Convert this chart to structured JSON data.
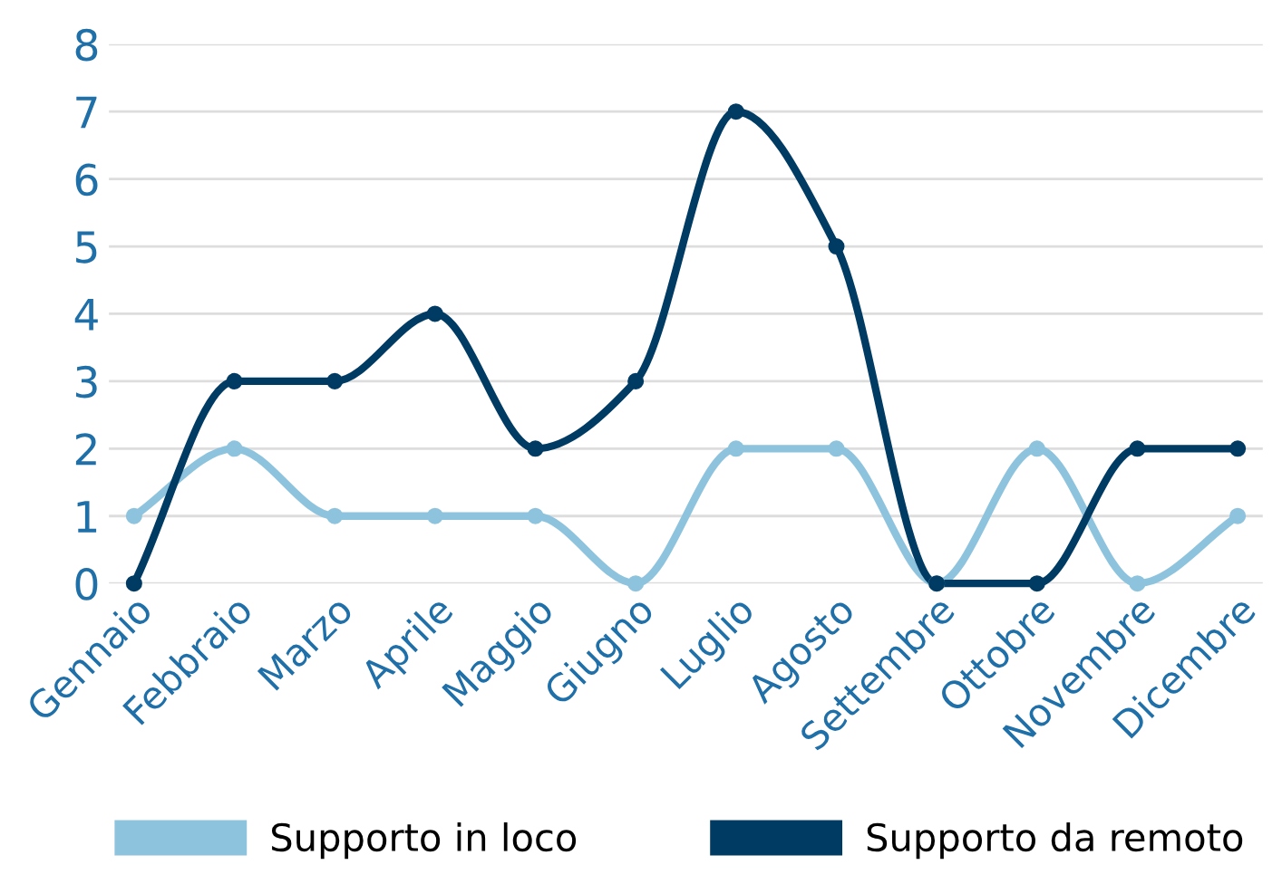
{
  "chart_data": {
    "type": "line",
    "categories": [
      "Gennaio",
      "Febbraio",
      "Marzo",
      "Aprile",
      "Maggio",
      "Giugno",
      "Luglio",
      "Agosto",
      "Settembre",
      "Ottobre",
      "Novembre",
      "Dicembre"
    ],
    "series": [
      {
        "name": "Supporto in loco",
        "color": "#8ec3de",
        "values": [
          1,
          2,
          1,
          1,
          1,
          0,
          2,
          2,
          0,
          2,
          0,
          1
        ]
      },
      {
        "name": "Supporto da remoto",
        "color": "#003b64",
        "values": [
          0,
          3,
          3,
          4,
          2,
          3,
          7,
          5,
          0,
          0,
          2,
          2
        ]
      }
    ],
    "ylim": [
      0,
      8
    ],
    "yticks": [
      0,
      1,
      2,
      3,
      4,
      5,
      6,
      7,
      8
    ],
    "grid": "y",
    "legend": "bottom",
    "marker": "circle",
    "line_style": "solid"
  }
}
